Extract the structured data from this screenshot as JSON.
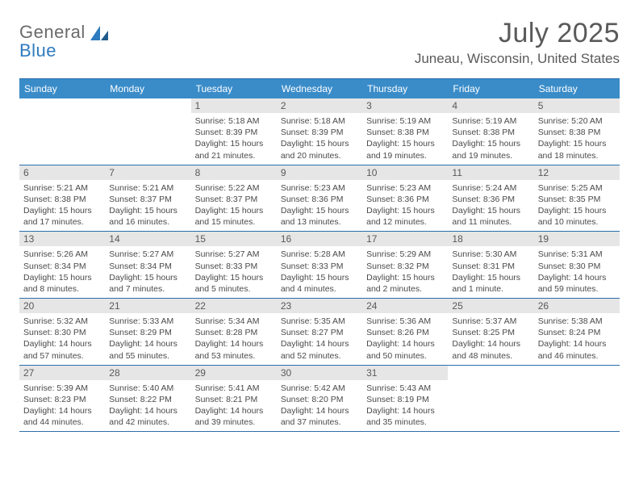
{
  "logo": {
    "line1": "General",
    "line2": "Blue"
  },
  "title": "July 2025",
  "location": "Juneau, Wisconsin, United States",
  "colors": {
    "header_bg": "#3a8cc9",
    "border": "#2b6fab",
    "daynum_bg": "#e6e6e6",
    "text": "#4a4a4a",
    "title_text": "#5a5a5a"
  },
  "weekdays": [
    "Sunday",
    "Monday",
    "Tuesday",
    "Wednesday",
    "Thursday",
    "Friday",
    "Saturday"
  ],
  "weeks": [
    [
      {
        "empty": true
      },
      {
        "empty": true
      },
      {
        "n": "1",
        "sr": "5:18 AM",
        "ss": "8:39 PM",
        "dl": "15 hours and 21 minutes."
      },
      {
        "n": "2",
        "sr": "5:18 AM",
        "ss": "8:39 PM",
        "dl": "15 hours and 20 minutes."
      },
      {
        "n": "3",
        "sr": "5:19 AM",
        "ss": "8:38 PM",
        "dl": "15 hours and 19 minutes."
      },
      {
        "n": "4",
        "sr": "5:19 AM",
        "ss": "8:38 PM",
        "dl": "15 hours and 19 minutes."
      },
      {
        "n": "5",
        "sr": "5:20 AM",
        "ss": "8:38 PM",
        "dl": "15 hours and 18 minutes."
      }
    ],
    [
      {
        "n": "6",
        "sr": "5:21 AM",
        "ss": "8:38 PM",
        "dl": "15 hours and 17 minutes."
      },
      {
        "n": "7",
        "sr": "5:21 AM",
        "ss": "8:37 PM",
        "dl": "15 hours and 16 minutes."
      },
      {
        "n": "8",
        "sr": "5:22 AM",
        "ss": "8:37 PM",
        "dl": "15 hours and 15 minutes."
      },
      {
        "n": "9",
        "sr": "5:23 AM",
        "ss": "8:36 PM",
        "dl": "15 hours and 13 minutes."
      },
      {
        "n": "10",
        "sr": "5:23 AM",
        "ss": "8:36 PM",
        "dl": "15 hours and 12 minutes."
      },
      {
        "n": "11",
        "sr": "5:24 AM",
        "ss": "8:36 PM",
        "dl": "15 hours and 11 minutes."
      },
      {
        "n": "12",
        "sr": "5:25 AM",
        "ss": "8:35 PM",
        "dl": "15 hours and 10 minutes."
      }
    ],
    [
      {
        "n": "13",
        "sr": "5:26 AM",
        "ss": "8:34 PM",
        "dl": "15 hours and 8 minutes."
      },
      {
        "n": "14",
        "sr": "5:27 AM",
        "ss": "8:34 PM",
        "dl": "15 hours and 7 minutes."
      },
      {
        "n": "15",
        "sr": "5:27 AM",
        "ss": "8:33 PM",
        "dl": "15 hours and 5 minutes."
      },
      {
        "n": "16",
        "sr": "5:28 AM",
        "ss": "8:33 PM",
        "dl": "15 hours and 4 minutes."
      },
      {
        "n": "17",
        "sr": "5:29 AM",
        "ss": "8:32 PM",
        "dl": "15 hours and 2 minutes."
      },
      {
        "n": "18",
        "sr": "5:30 AM",
        "ss": "8:31 PM",
        "dl": "15 hours and 1 minute."
      },
      {
        "n": "19",
        "sr": "5:31 AM",
        "ss": "8:30 PM",
        "dl": "14 hours and 59 minutes."
      }
    ],
    [
      {
        "n": "20",
        "sr": "5:32 AM",
        "ss": "8:30 PM",
        "dl": "14 hours and 57 minutes."
      },
      {
        "n": "21",
        "sr": "5:33 AM",
        "ss": "8:29 PM",
        "dl": "14 hours and 55 minutes."
      },
      {
        "n": "22",
        "sr": "5:34 AM",
        "ss": "8:28 PM",
        "dl": "14 hours and 53 minutes."
      },
      {
        "n": "23",
        "sr": "5:35 AM",
        "ss": "8:27 PM",
        "dl": "14 hours and 52 minutes."
      },
      {
        "n": "24",
        "sr": "5:36 AM",
        "ss": "8:26 PM",
        "dl": "14 hours and 50 minutes."
      },
      {
        "n": "25",
        "sr": "5:37 AM",
        "ss": "8:25 PM",
        "dl": "14 hours and 48 minutes."
      },
      {
        "n": "26",
        "sr": "5:38 AM",
        "ss": "8:24 PM",
        "dl": "14 hours and 46 minutes."
      }
    ],
    [
      {
        "n": "27",
        "sr": "5:39 AM",
        "ss": "8:23 PM",
        "dl": "14 hours and 44 minutes."
      },
      {
        "n": "28",
        "sr": "5:40 AM",
        "ss": "8:22 PM",
        "dl": "14 hours and 42 minutes."
      },
      {
        "n": "29",
        "sr": "5:41 AM",
        "ss": "8:21 PM",
        "dl": "14 hours and 39 minutes."
      },
      {
        "n": "30",
        "sr": "5:42 AM",
        "ss": "8:20 PM",
        "dl": "14 hours and 37 minutes."
      },
      {
        "n": "31",
        "sr": "5:43 AM",
        "ss": "8:19 PM",
        "dl": "14 hours and 35 minutes."
      },
      {
        "empty": true
      },
      {
        "empty": true
      }
    ]
  ],
  "labels": {
    "sunrise": "Sunrise:",
    "sunset": "Sunset:",
    "daylight": "Daylight:"
  }
}
